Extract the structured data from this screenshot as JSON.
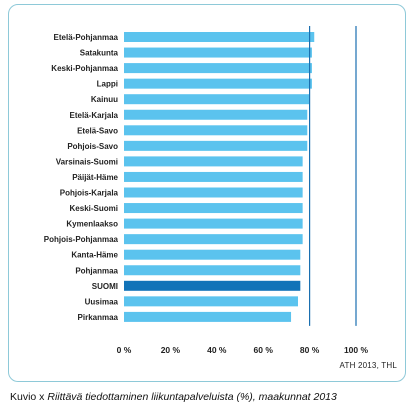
{
  "chart_data": {
    "type": "bar",
    "orientation": "horizontal",
    "categories": [
      "Etelä-Pohjanmaa",
      "Satakunta",
      "Keski-Pohjanmaa",
      "Lappi",
      "Kainuu",
      "Etelä-Karjala",
      "Etelä-Savo",
      "Pohjois-Savo",
      "Varsinais-Suomi",
      "Päijät-Häme",
      "Pohjois-Karjala",
      "Keski-Suomi",
      "Kymenlaakso",
      "Pohjois-Pohjanmaa",
      "Kanta-Häme",
      "Pohjanmaa",
      "SUOMI",
      "Uusimaa",
      "Pirkanmaa"
    ],
    "values": [
      82,
      81,
      81,
      81,
      80,
      79,
      79,
      79,
      77,
      77,
      77,
      77,
      77,
      77,
      76,
      76,
      76,
      75,
      72
    ],
    "highlight_category": "SUOMI",
    "xlim": [
      0,
      100
    ],
    "xticks": [
      "0 %",
      "20 %",
      "40 %",
      "60 %",
      "80 %",
      "100 %"
    ],
    "xtick_values": [
      0,
      20,
      40,
      60,
      80,
      100
    ],
    "grid": "vertical gridlines at 80 and 100",
    "colors": {
      "bar": "#5bc3ee",
      "highlight": "#1273b8",
      "grid": "#1a6fb0",
      "frame": "#8ec9d8"
    }
  },
  "source": "ATH 2013, THL",
  "caption": {
    "label": "Kuvio x",
    "text": "Riittävä tiedottaminen liikuntapalveluista (%), maakunnat 2013"
  }
}
